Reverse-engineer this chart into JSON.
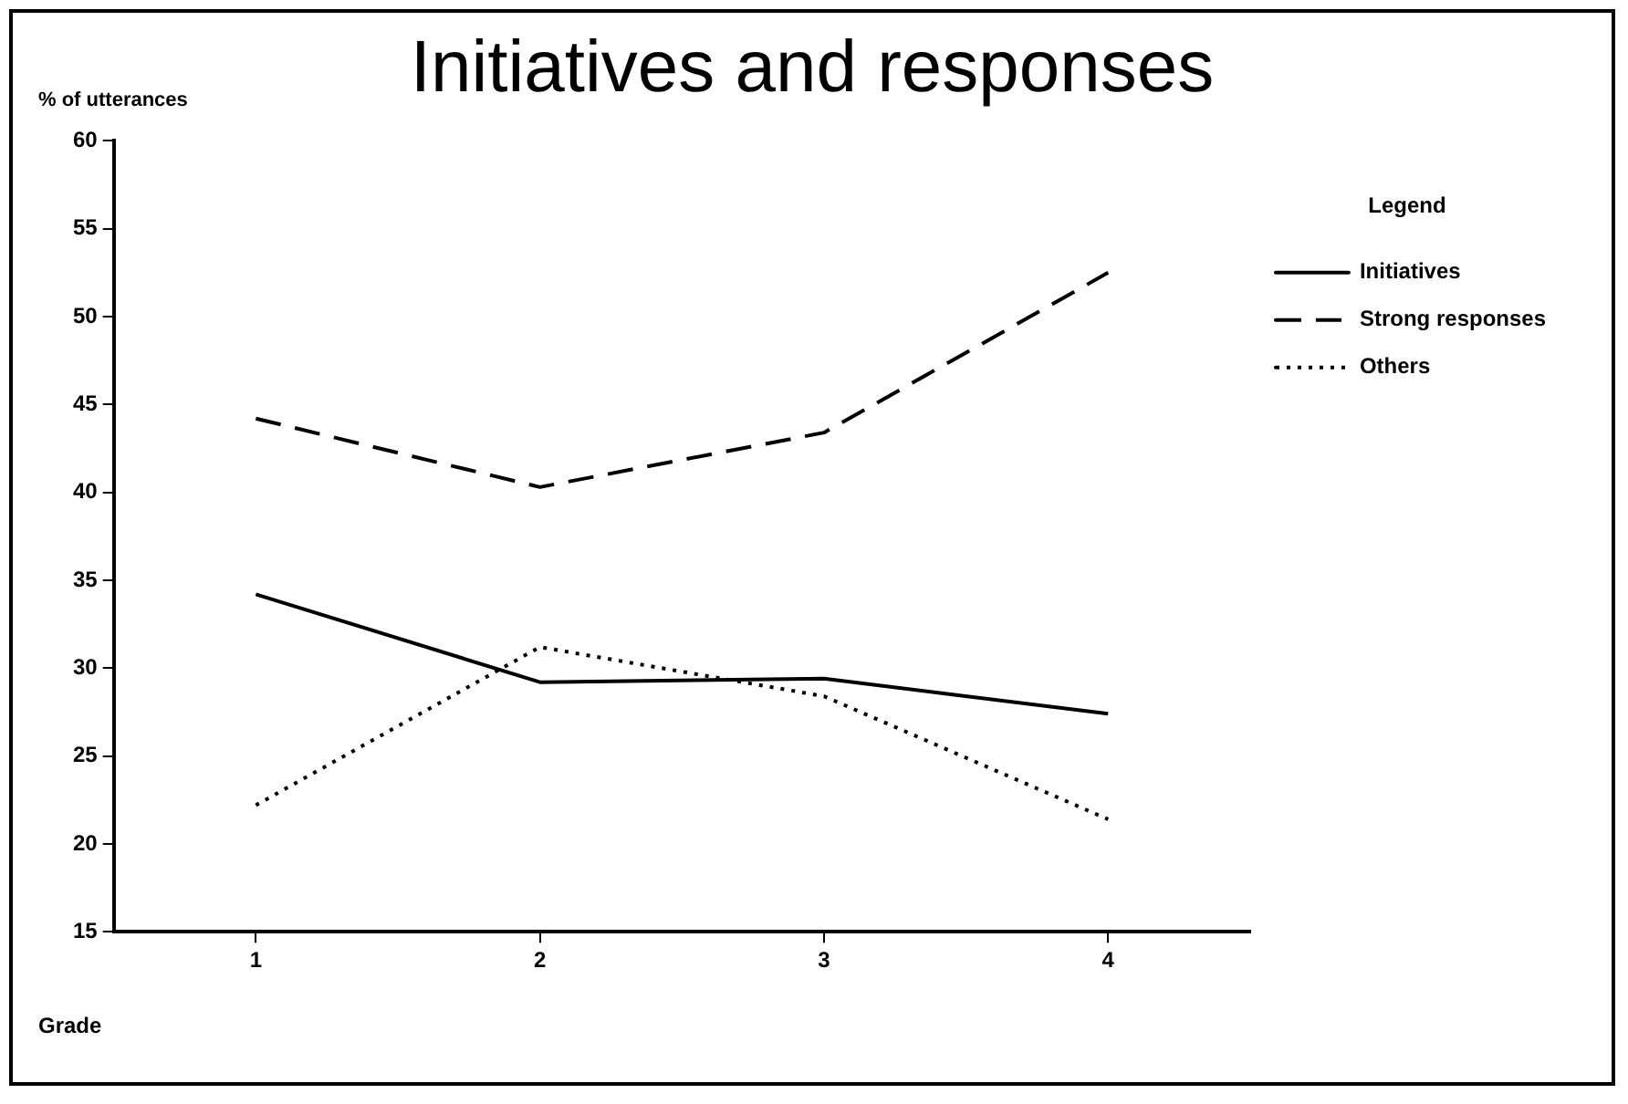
{
  "chart_data": {
    "type": "line",
    "title": "Initiatives and responses",
    "ylabel": "% of utterances",
    "xlabel": "Grade",
    "legend_title": "Legend",
    "categories": [
      "1",
      "2",
      "3",
      "4"
    ],
    "series": [
      {
        "name": "Initiatives",
        "color": "#000000",
        "line_style": "solid",
        "values": [
          34.2,
          29.2,
          29.4,
          27.4
        ]
      },
      {
        "name": "Strong responses",
        "color": "#000000",
        "line_style": "dashed",
        "values": [
          44.2,
          40.3,
          43.4,
          52.5
        ]
      },
      {
        "name": "Others",
        "color": "#000000",
        "line_style": "dotted",
        "values": [
          22.2,
          31.2,
          28.4,
          21.4
        ]
      }
    ],
    "ylim": [
      15,
      60
    ],
    "yticks": [
      15,
      20,
      25,
      30,
      35,
      40,
      45,
      50,
      55,
      60
    ],
    "grid": false,
    "legend": "right",
    "marker": "none"
  }
}
